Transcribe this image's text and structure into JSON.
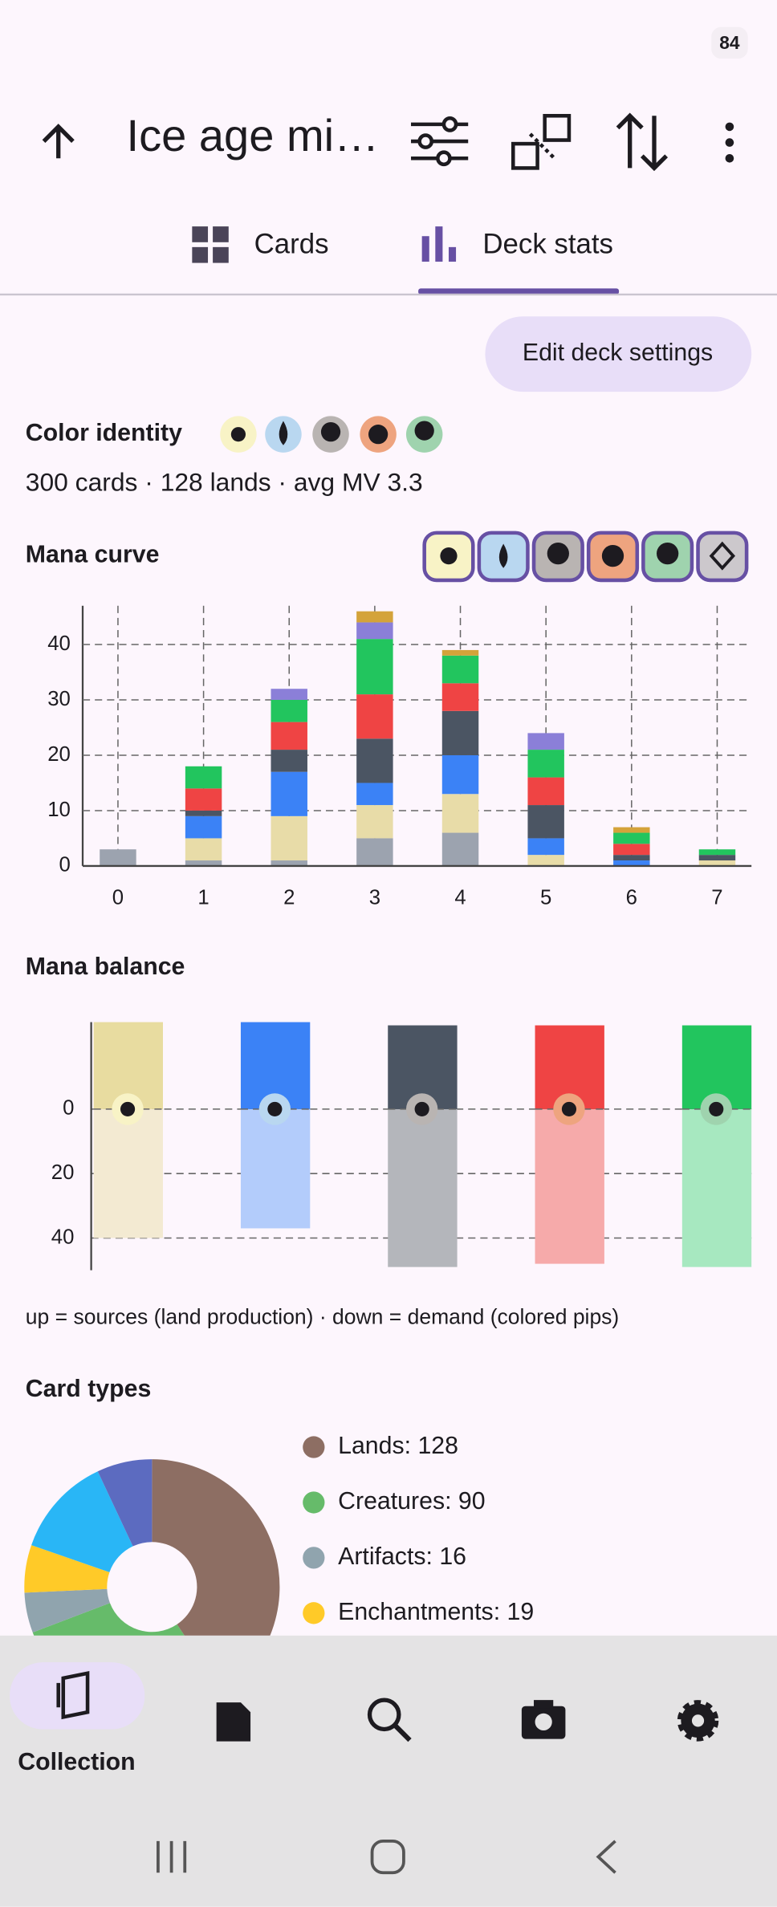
{
  "status_bar": {
    "battery": "84"
  },
  "toolbar": {
    "title": "Ice age mi…"
  },
  "tabs": [
    "Cards",
    "Deck stats"
  ],
  "edit_button": "Edit deck settings",
  "color_identity": {
    "title": "Color identity",
    "summary": "300 cards · 128 lands · avg MV 3.3"
  },
  "mana_curve": {
    "type": "bar",
    "stacked": true,
    "title": "Mana curve",
    "categories": [
      "0",
      "1",
      "2",
      "3",
      "4",
      "5",
      "6",
      "7"
    ],
    "series": [
      {
        "color": "#9ca3af",
        "values": [
          3,
          1,
          1,
          5,
          6,
          0,
          0,
          0
        ]
      },
      {
        "color": "#e8dca8",
        "values": [
          0,
          4,
          8,
          6,
          7,
          2,
          0,
          1
        ]
      },
      {
        "color": "#3b82f6",
        "values": [
          0,
          4,
          8,
          4,
          7,
          3,
          1,
          0
        ]
      },
      {
        "color": "#4b5563",
        "values": [
          0,
          1,
          4,
          8,
          8,
          6,
          1,
          1
        ]
      },
      {
        "color": "#ef4444",
        "values": [
          0,
          4,
          5,
          8,
          5,
          5,
          2,
          0
        ]
      },
      {
        "color": "#22c55e",
        "values": [
          0,
          4,
          4,
          10,
          5,
          5,
          2,
          1
        ]
      },
      {
        "color": "#8b7fd8",
        "values": [
          0,
          0,
          2,
          3,
          0,
          3,
          0,
          0
        ]
      },
      {
        "color": "#d4a33a",
        "values": [
          0,
          0,
          0,
          2,
          1,
          0,
          1,
          0
        ]
      }
    ],
    "ylim": [
      0,
      47
    ],
    "yticks": [
      0,
      10,
      20,
      30,
      40
    ],
    "grid": true
  },
  "mana_balance": {
    "type": "diverging-bar",
    "title": "Mana balance",
    "series": [
      {
        "color": "#e8dca0",
        "down_color": "#f3ead2",
        "sources": 27,
        "demand": 40
      },
      {
        "color": "#3b82f6",
        "down_color": "#b3ccfb",
        "sources": 27,
        "demand": 37
      },
      {
        "color": "#4b5563",
        "down_color": "#b4b6bb",
        "sources": 26,
        "demand": 49
      },
      {
        "color": "#ef4444",
        "down_color": "#f6aaaa",
        "sources": 26,
        "demand": 48
      },
      {
        "color": "#22c55e",
        "down_color": "#a7e8c0",
        "sources": 26,
        "demand": 49
      }
    ],
    "ylim": [
      27,
      50
    ],
    "yticks": [
      0,
      20,
      40
    ],
    "grid": true,
    "note": "up = sources (land production) · down = demand (colored pips)"
  },
  "card_types": {
    "type": "pie",
    "title": "Card types",
    "slices": [
      {
        "label": "Lands: 128",
        "value": 128,
        "color": "#8d6e63"
      },
      {
        "label": "Creatures: 90",
        "value": 90,
        "color": "#66bb6a"
      },
      {
        "label": "Artifacts: 16",
        "value": 16,
        "color": "#90a4ae"
      },
      {
        "label": "Enchantments: 19",
        "value": 19,
        "color": "#ffca28"
      },
      {
        "value": 40,
        "color": "#29b6f6"
      },
      {
        "value": 22,
        "color": "#5c6bc0"
      }
    ]
  },
  "bottom_nav": {
    "active_label": "Collection"
  }
}
